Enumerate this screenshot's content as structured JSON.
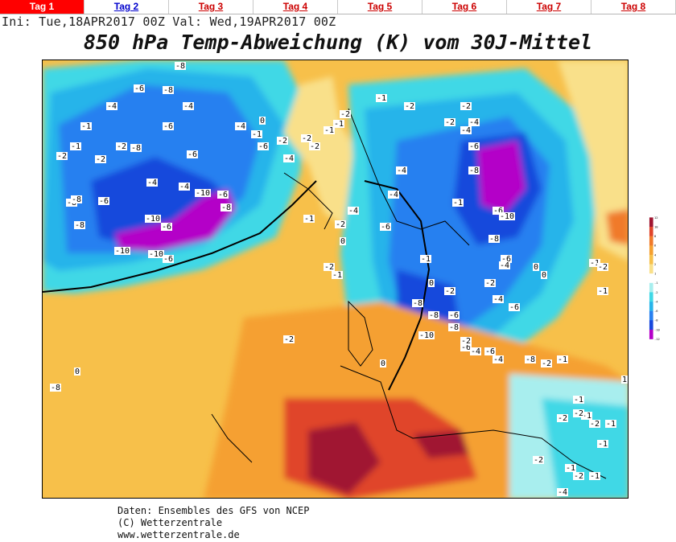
{
  "tabs": [
    {
      "label": "Tag 1",
      "active": true
    },
    {
      "label": "Tag 2",
      "active": false
    },
    {
      "label": "Tag 3",
      "active": false
    },
    {
      "label": "Tag 4",
      "active": false
    },
    {
      "label": "Tag 5",
      "active": false
    },
    {
      "label": "Tag 6",
      "active": false
    },
    {
      "label": "Tag 7",
      "active": false
    },
    {
      "label": "Tag 8",
      "active": false
    }
  ],
  "header": {
    "init_line": "Ini: Tue,18APR2017 00Z Val: Wed,19APR2017 00Z",
    "title": "850 hPa Temp-Abweichung (K) vom 30J-Mittel"
  },
  "colorbar": {
    "ticks": [
      "12",
      "10",
      "8",
      "6",
      "4",
      "2",
      "1",
      "-1",
      "-2",
      "-4",
      "-6",
      "-8",
      "-10",
      "-12"
    ],
    "colors": [
      "#a01530",
      "#e0452a",
      "#f07a2a",
      "#f5a030",
      "#f7c04a",
      "#f9e08a",
      "#ffffff",
      "#a8eeee",
      "#40d8e6",
      "#28b4ea",
      "#2880f0",
      "#1848dc",
      "#b400c8"
    ]
  },
  "map_labels": {
    "values": [
      "-8",
      "-6",
      "-8",
      "-4",
      "-6",
      "-8",
      "-4",
      "-6",
      "-4",
      "-6",
      "-1",
      "-2",
      "-2",
      "-2",
      "-1",
      "-4",
      "-6",
      "-8",
      "-6",
      "-10",
      "-8",
      "-6",
      "-10",
      "-8",
      "-8",
      "-10",
      "-10",
      "-6",
      "-4",
      "0",
      "-1",
      "-2",
      "-4",
      "-2",
      "-2",
      "-1",
      "-1",
      "-2",
      "0",
      "-1",
      "-2",
      "-4",
      "-4",
      "-2",
      "-1",
      "-2",
      "-4",
      "-2",
      "-4",
      "-6",
      "-8",
      "-6",
      "-10",
      "-8",
      "-6",
      "-4",
      "-8",
      "-8",
      "-6",
      "-8",
      "-10",
      "-6",
      "-2",
      "-4",
      "-6",
      "-4",
      "-8",
      "-2",
      "-1",
      "0",
      "-2",
      "-4",
      "-6",
      "0",
      "-1",
      "-2",
      "-1",
      "0",
      "0",
      "1",
      "-1",
      "-1",
      "-2",
      "-2",
      "-2",
      "-1",
      "-1",
      "-2",
      "-1",
      "-1",
      "-4",
      "-2",
      "-8",
      "-2",
      "-2",
      "-1",
      "-4",
      "-6",
      "-1",
      "0",
      "-2",
      "-1"
    ]
  },
  "footer": {
    "line1": "Daten: Ensembles des GFS von NCEP",
    "line2": "(C) Wetterzentrale",
    "line3": "www.wetterzentrale.de"
  }
}
